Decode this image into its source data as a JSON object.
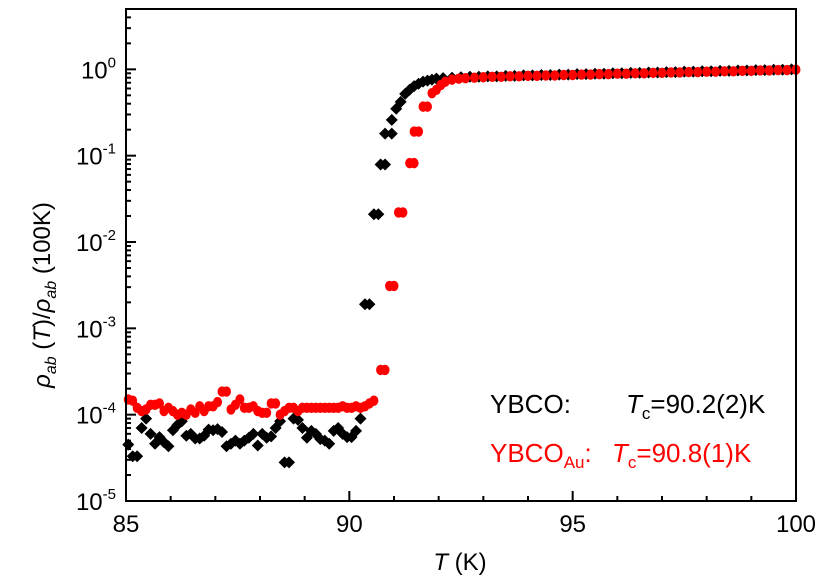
{
  "chart_data": {
    "type": "scatter",
    "xlabel": {
      "symbol": "T",
      "unit": " (K)"
    },
    "ylabel": {
      "rho": "ρ",
      "sub": "ab",
      "paren_open": " (",
      "T": "T",
      "paren_close": ")/",
      "tail": " (100K)"
    },
    "xlim": [
      85,
      100
    ],
    "ylim": [
      1e-05,
      5
    ],
    "yscale": "log",
    "x_ticks": [
      "85",
      "90",
      "95",
      "100"
    ],
    "y_ticks": [
      {
        "base": "10",
        "exp": "-5",
        "value": 1e-05
      },
      {
        "base": "10",
        "exp": "-4",
        "value": 0.0001
      },
      {
        "base": "10",
        "exp": "-3",
        "value": 0.001
      },
      {
        "base": "10",
        "exp": "-2",
        "value": 0.01
      },
      {
        "base": "10",
        "exp": "-1",
        "value": 0.1
      },
      {
        "base": "10",
        "exp": "0",
        "value": 1
      }
    ],
    "annotations": [
      {
        "name": "YBCO",
        "sub": "",
        "sep": ":",
        "tc_symbol": "T",
        "tc_sub": "c",
        "tc_value": "=90.2(2)K",
        "color": "#000000"
      },
      {
        "name": "YBCO",
        "sub": "Au",
        "sep": ":",
        "tc_symbol": "T",
        "tc_sub": "c",
        "tc_value": "=90.8(1)K",
        "color": "#ff0000"
      }
    ],
    "series": [
      {
        "marker": "diamond",
        "color": "#000000",
        "points": [
          [
            85.05,
            4.5e-05
          ],
          [
            85.15,
            3.3e-05
          ],
          [
            85.25,
            3.3e-05
          ],
          [
            85.35,
            7e-05
          ],
          [
            85.45,
            9e-05
          ],
          [
            85.55,
            6e-05
          ],
          [
            85.65,
            4.6e-05
          ],
          [
            85.75,
            5.5e-05
          ],
          [
            85.85,
            4.8e-05
          ],
          [
            85.95,
            4.3e-05
          ],
          [
            86.05,
            6.6e-05
          ],
          [
            86.15,
            7.6e-05
          ],
          [
            86.25,
            8.4e-05
          ],
          [
            86.35,
            5.7e-05
          ],
          [
            86.45,
            6e-05
          ],
          [
            86.55,
            5.3e-05
          ],
          [
            86.65,
            5.3e-05
          ],
          [
            86.75,
            5.7e-05
          ],
          [
            86.85,
            6.7e-05
          ],
          [
            86.95,
            6.6e-05
          ],
          [
            87.05,
            6.8e-05
          ],
          [
            87.15,
            6.3e-05
          ],
          [
            87.25,
            4.3e-05
          ],
          [
            87.35,
            4.6e-05
          ],
          [
            87.45,
            5e-05
          ],
          [
            87.55,
            4.6e-05
          ],
          [
            87.65,
            5e-05
          ],
          [
            87.75,
            5.4e-05
          ],
          [
            87.85,
            6e-05
          ],
          [
            87.95,
            4.4e-05
          ],
          [
            88.05,
            6e-05
          ],
          [
            88.15,
            5.4e-05
          ],
          [
            88.25,
            5.6e-05
          ],
          [
            88.35,
            7e-05
          ],
          [
            88.45,
            8.4e-05
          ],
          [
            88.55,
            2.8e-05
          ],
          [
            88.65,
            2.8e-05
          ],
          [
            88.75,
            9e-05
          ],
          [
            88.85,
            8.7e-05
          ],
          [
            88.95,
            7e-05
          ],
          [
            89.05,
            5.4e-05
          ],
          [
            89.15,
            6.5e-05
          ],
          [
            89.25,
            6e-05
          ],
          [
            89.35,
            5.2e-05
          ],
          [
            89.45,
            5e-05
          ],
          [
            89.55,
            4.6e-05
          ],
          [
            89.65,
            6.5e-05
          ],
          [
            89.75,
            7e-05
          ],
          [
            89.85,
            6e-05
          ],
          [
            89.95,
            5.5e-05
          ],
          [
            90.05,
            5.5e-05
          ],
          [
            90.15,
            6.5e-05
          ],
          [
            90.25,
            9e-05
          ],
          [
            90.35,
            0.0019
          ],
          [
            90.45,
            0.0019
          ],
          [
            90.55,
            0.021
          ],
          [
            90.65,
            0.021
          ],
          [
            90.7,
            0.079
          ],
          [
            90.8,
            0.079
          ],
          [
            90.8,
            0.18
          ],
          [
            90.95,
            0.18
          ],
          [
            90.95,
            0.26
          ],
          [
            91.05,
            0.35
          ],
          [
            91.15,
            0.42
          ],
          [
            91.25,
            0.52
          ],
          [
            91.35,
            0.58
          ],
          [
            91.45,
            0.64
          ],
          [
            91.55,
            0.68
          ],
          [
            91.65,
            0.72
          ],
          [
            91.75,
            0.74
          ],
          [
            91.85,
            0.76
          ],
          [
            91.95,
            0.78
          ],
          [
            92.1,
            0.79
          ],
          [
            92.3,
            0.8
          ],
          [
            92.5,
            0.81
          ],
          [
            92.7,
            0.82
          ],
          [
            92.9,
            0.82
          ],
          [
            93.1,
            0.83
          ],
          [
            93.3,
            0.83
          ],
          [
            93.5,
            0.84
          ],
          [
            93.7,
            0.84
          ],
          [
            93.9,
            0.85
          ],
          [
            94.1,
            0.85
          ],
          [
            94.3,
            0.86
          ],
          [
            94.5,
            0.86
          ],
          [
            94.7,
            0.87
          ],
          [
            94.9,
            0.87
          ],
          [
            95.1,
            0.88
          ],
          [
            95.3,
            0.88
          ],
          [
            95.5,
            0.89
          ],
          [
            95.7,
            0.89
          ],
          [
            95.9,
            0.9
          ],
          [
            96.1,
            0.9
          ],
          [
            96.3,
            0.91
          ],
          [
            96.5,
            0.91
          ],
          [
            96.7,
            0.92
          ],
          [
            96.9,
            0.92
          ],
          [
            97.1,
            0.93
          ],
          [
            97.3,
            0.93
          ],
          [
            97.5,
            0.94
          ],
          [
            97.7,
            0.94
          ],
          [
            97.9,
            0.95
          ],
          [
            98.1,
            0.95
          ],
          [
            98.3,
            0.96
          ],
          [
            98.5,
            0.96
          ],
          [
            98.7,
            0.97
          ],
          [
            98.9,
            0.97
          ],
          [
            99.1,
            0.98
          ],
          [
            99.3,
            0.98
          ],
          [
            99.5,
            0.99
          ],
          [
            99.7,
            0.99
          ],
          [
            99.9,
            1.0
          ]
        ]
      },
      {
        "marker": "circle",
        "color": "#ff0000",
        "points": [
          [
            85.05,
            0.00015
          ],
          [
            85.15,
            0.000145
          ],
          [
            85.25,
            0.00012
          ],
          [
            85.35,
            0.00011
          ],
          [
            85.45,
            0.000115
          ],
          [
            85.55,
            0.00013
          ],
          [
            85.65,
            0.00013
          ],
          [
            85.75,
            0.000135
          ],
          [
            85.85,
            0.00011
          ],
          [
            85.95,
            0.00012
          ],
          [
            86.05,
            0.00011
          ],
          [
            86.15,
            0.0001
          ],
          [
            86.25,
            0.000105
          ],
          [
            86.35,
            0.0001
          ],
          [
            86.45,
            0.000115
          ],
          [
            86.55,
            0.000105
          ],
          [
            86.65,
            0.000125
          ],
          [
            86.75,
            0.00011
          ],
          [
            86.85,
            0.000125
          ],
          [
            86.95,
            0.000125
          ],
          [
            87.05,
            0.00014
          ],
          [
            87.15,
            0.000185
          ],
          [
            87.25,
            0.000185
          ],
          [
            87.35,
            0.000115
          ],
          [
            87.45,
            0.00013
          ],
          [
            87.55,
            0.00015
          ],
          [
            87.65,
            0.00012
          ],
          [
            87.75,
            0.00012
          ],
          [
            87.85,
            0.000125
          ],
          [
            87.95,
            0.00011
          ],
          [
            88.05,
            0.000105
          ],
          [
            88.15,
            0.000105
          ],
          [
            88.25,
            0.000135
          ],
          [
            88.35,
            0.000135
          ],
          [
            88.45,
            0.0001
          ],
          [
            88.55,
            0.00011
          ],
          [
            88.65,
            0.00012
          ],
          [
            88.75,
            0.00012
          ],
          [
            88.85,
            0.00011
          ],
          [
            88.95,
            0.00012
          ],
          [
            89.05,
            0.00012
          ],
          [
            89.15,
            0.00012
          ],
          [
            89.25,
            0.00012
          ],
          [
            89.35,
            0.00012
          ],
          [
            89.45,
            0.00012
          ],
          [
            89.55,
            0.00012
          ],
          [
            89.65,
            0.00012
          ],
          [
            89.75,
            0.00012
          ],
          [
            89.85,
            0.000125
          ],
          [
            89.95,
            0.00012
          ],
          [
            90.05,
            0.00012
          ],
          [
            90.15,
            0.000125
          ],
          [
            90.25,
            0.00012
          ],
          [
            90.35,
            0.000125
          ],
          [
            90.45,
            0.000135
          ],
          [
            90.55,
            0.000145
          ],
          [
            90.7,
            0.00033
          ],
          [
            90.8,
            0.00033
          ],
          [
            90.9,
            0.0031
          ],
          [
            91.0,
            0.0031
          ],
          [
            91.1,
            0.022
          ],
          [
            91.2,
            0.022
          ],
          [
            91.35,
            0.082
          ],
          [
            91.45,
            0.082
          ],
          [
            91.45,
            0.19
          ],
          [
            91.55,
            0.19
          ],
          [
            91.65,
            0.37
          ],
          [
            91.75,
            0.37
          ],
          [
            91.85,
            0.53
          ],
          [
            91.95,
            0.58
          ],
          [
            92.05,
            0.66
          ],
          [
            92.15,
            0.72
          ],
          [
            92.3,
            0.76
          ],
          [
            92.45,
            0.78
          ],
          [
            92.6,
            0.79
          ],
          [
            92.8,
            0.8
          ],
          [
            93.0,
            0.81
          ],
          [
            93.2,
            0.82
          ],
          [
            93.4,
            0.82
          ],
          [
            93.6,
            0.83
          ],
          [
            93.8,
            0.83
          ],
          [
            94.0,
            0.84
          ],
          [
            94.2,
            0.84
          ],
          [
            94.4,
            0.85
          ],
          [
            94.6,
            0.85
          ],
          [
            94.8,
            0.86
          ],
          [
            95.0,
            0.86
          ],
          [
            95.2,
            0.87
          ],
          [
            95.4,
            0.87
          ],
          [
            95.6,
            0.88
          ],
          [
            95.8,
            0.88
          ],
          [
            96.0,
            0.89
          ],
          [
            96.2,
            0.89
          ],
          [
            96.4,
            0.9
          ],
          [
            96.6,
            0.9
          ],
          [
            96.8,
            0.91
          ],
          [
            97.0,
            0.91
          ],
          [
            97.2,
            0.92
          ],
          [
            97.4,
            0.92
          ],
          [
            97.6,
            0.93
          ],
          [
            97.8,
            0.93
          ],
          [
            98.0,
            0.94
          ],
          [
            98.2,
            0.94
          ],
          [
            98.4,
            0.95
          ],
          [
            98.6,
            0.95
          ],
          [
            98.8,
            0.96
          ],
          [
            99.0,
            0.96
          ],
          [
            99.2,
            0.97
          ],
          [
            99.4,
            0.97
          ],
          [
            99.6,
            0.98
          ],
          [
            99.8,
            0.98
          ],
          [
            100.0,
            0.99
          ]
        ]
      }
    ]
  }
}
